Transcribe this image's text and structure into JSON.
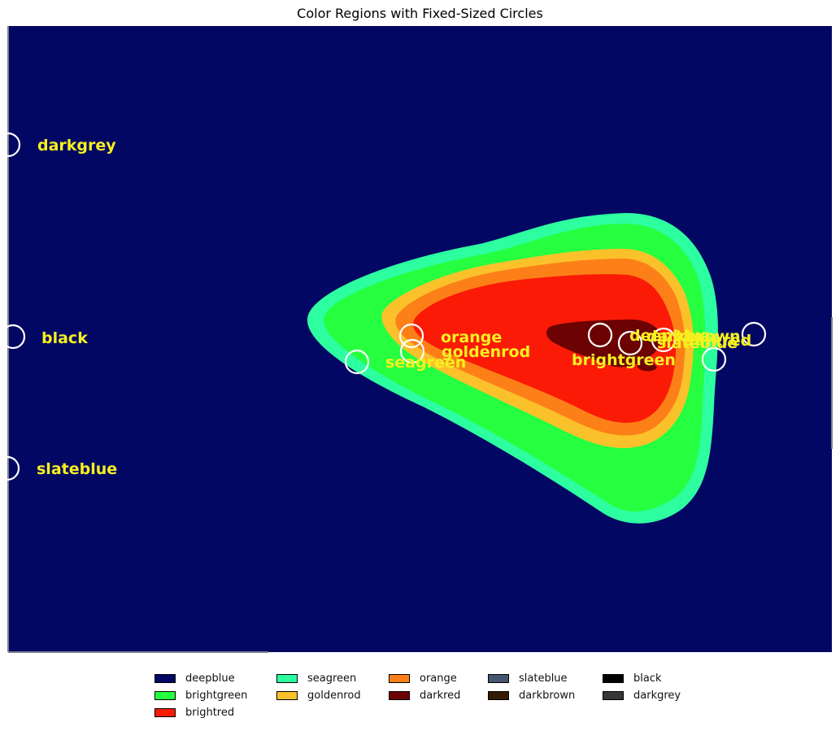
{
  "chart_data": {
    "type": "heatmap",
    "title": "Color Regions with Fixed-Sized Circles",
    "xlabel": "",
    "ylabel": "",
    "colors": {
      "deepblue": "#030764",
      "brightgreen": "#26ff3f",
      "brightred": "#fb1a06",
      "seagreen": "#2dfea0",
      "goldenrod": "#fbc12b",
      "orange": "#fc8017",
      "darkred": "#6c0202",
      "slateblue": "#465670",
      "darkbrown": "#341c02",
      "black": "#000000",
      "darkgrey": "#363737"
    },
    "legend": [
      "deepblue",
      "brightgreen",
      "brightred",
      "seagreen",
      "goldenrod",
      "orange",
      "darkred",
      "slateblue",
      "darkbrown",
      "black",
      "darkgrey"
    ],
    "legend_placement": "bottom-center",
    "annotations": [
      "darkgrey",
      "black",
      "slateblue",
      "orange",
      "goldenrod",
      "seagreen",
      "brightgreen",
      "deepblue",
      "slateblue",
      "darkbrown",
      "darkred"
    ],
    "circle_style": "white-outline"
  }
}
